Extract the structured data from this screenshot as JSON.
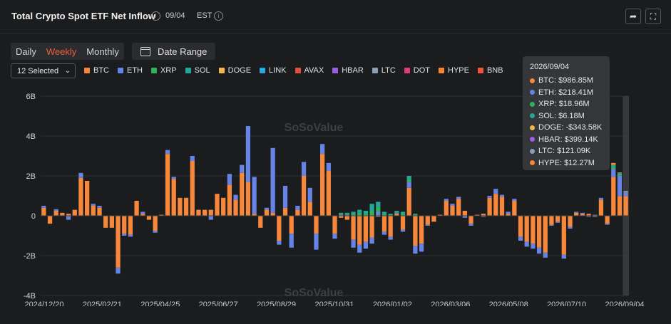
{
  "header": {
    "title": "Total Crypto Spot ETF Net Inflow",
    "date": "09/04",
    "timezone": "EST"
  },
  "controls": {
    "periods": [
      "Daily",
      "Weekly",
      "Monthly"
    ],
    "active_period": "Weekly",
    "date_range_label": "Date Range",
    "select_label": "12 Selected"
  },
  "legend": [
    {
      "name": "BTC",
      "color": "#f7873b"
    },
    {
      "name": "ETH",
      "color": "#6683e6"
    },
    {
      "name": "XRP",
      "color": "#2fb35e"
    },
    {
      "name": "SOL",
      "color": "#22a89a"
    },
    {
      "name": "DOGE",
      "color": "#f2b84d"
    },
    {
      "name": "LINK",
      "color": "#2aa7dd"
    },
    {
      "name": "AVAX",
      "color": "#e84c3d"
    },
    {
      "name": "HBAR",
      "color": "#9b5ce6"
    },
    {
      "name": "LTC",
      "color": "#8aa0b8"
    },
    {
      "name": "DOT",
      "color": "#e6397c"
    },
    {
      "name": "HYPE",
      "color": "#f98431"
    },
    {
      "name": "BNB",
      "color": "#f2543d"
    }
  ],
  "watermark": "SoSoValue",
  "tooltip": {
    "date": "2026/09/04",
    "rows": [
      {
        "label": "BTC: $986.85M",
        "color": "#f7873b"
      },
      {
        "label": "ETH: $218.41M",
        "color": "#6683e6"
      },
      {
        "label": "XRP: $18.96M",
        "color": "#2fb35e"
      },
      {
        "label": "SOL: $6.18M",
        "color": "#22a89a"
      },
      {
        "label": "DOGE: -$343.58K",
        "color": "#f2b84d"
      },
      {
        "label": "HBAR: $399.14K",
        "color": "#9b5ce6"
      },
      {
        "label": "LTC: $121.09K",
        "color": "#8aa0b8"
      },
      {
        "label": "HYPE: $12.27M",
        "color": "#f98431"
      }
    ]
  },
  "chart_data": {
    "type": "bar",
    "stacked": true,
    "unit": "USD",
    "ylim": [
      -4,
      6
    ],
    "yticks": [
      "-4B",
      "-2B",
      "0",
      "2B",
      "4B",
      "6B"
    ],
    "x_tick_labels": [
      "2024/12/20",
      "2025/02/21",
      "2025/04/25",
      "2025/06/27",
      "2025/08/29",
      "2025/10/31",
      "2026/01/02",
      "2026/03/06",
      "2026/05/08",
      "2026/07/10",
      "2026/09/04"
    ],
    "grid": true,
    "highlighted_week": "2026/09/04",
    "series_order": [
      "BTC",
      "ETH",
      "XRP",
      "SOL",
      "HYPE"
    ],
    "weeks_billion_usd": [
      [
        0.4,
        0.1,
        0,
        0,
        0
      ],
      [
        -0.4,
        0,
        0,
        0,
        0
      ],
      [
        0.25,
        0.08,
        0,
        0,
        0
      ],
      [
        0.15,
        0,
        0,
        0,
        0
      ],
      [
        0.1,
        -0.2,
        0,
        0,
        0
      ],
      [
        0.3,
        0,
        0,
        0,
        0
      ],
      [
        1.9,
        0.25,
        0,
        0,
        0
      ],
      [
        1.75,
        0,
        0,
        0,
        0
      ],
      [
        0.5,
        0.1,
        0,
        0,
        0
      ],
      [
        0.4,
        0.1,
        0,
        0,
        0
      ],
      [
        -0.6,
        0,
        0,
        0,
        0
      ],
      [
        -0.6,
        0,
        0,
        0,
        0
      ],
      [
        -2.6,
        -0.3,
        0,
        0,
        0
      ],
      [
        -0.9,
        -0.1,
        0,
        0,
        0
      ],
      [
        -0.95,
        -0.1,
        0,
        0,
        0
      ],
      [
        0.75,
        0,
        0,
        0,
        0
      ],
      [
        0.1,
        0.1,
        0,
        0,
        0
      ],
      [
        -0.2,
        0,
        0,
        0,
        0
      ],
      [
        -0.75,
        -0.1,
        0,
        0,
        0
      ],
      [
        0.05,
        0,
        0,
        0,
        0
      ],
      [
        3.1,
        0.2,
        0,
        0,
        0
      ],
      [
        1.85,
        0.1,
        0,
        0,
        0
      ],
      [
        0.9,
        0,
        0,
        0,
        0
      ],
      [
        0.9,
        0,
        0,
        0,
        0
      ],
      [
        2.75,
        0.25,
        0,
        0,
        0
      ],
      [
        0.3,
        0,
        0,
        0,
        0
      ],
      [
        0.3,
        0,
        0,
        0,
        0
      ],
      [
        0.3,
        -0.2,
        0,
        0,
        0
      ],
      [
        1.1,
        0,
        0,
        0,
        0
      ],
      [
        0.9,
        0,
        0,
        0,
        0
      ],
      [
        1.55,
        0.55,
        0,
        0,
        0
      ],
      [
        0.8,
        0.25,
        0,
        0,
        0
      ],
      [
        2.15,
        0.4,
        0,
        0,
        0
      ],
      [
        1.7,
        2.8,
        0,
        0,
        0
      ],
      [
        0.1,
        1.85,
        0,
        0,
        0
      ],
      [
        -0.6,
        0,
        0,
        0,
        0
      ],
      [
        0.3,
        0.1,
        0,
        0,
        0
      ],
      [
        0.15,
        3.25,
        0,
        0,
        0
      ],
      [
        -1.25,
        -0.2,
        0,
        0,
        0
      ],
      [
        0.4,
        1.1,
        0,
        0,
        0
      ],
      [
        -0.9,
        -0.7,
        0,
        0,
        0
      ],
      [
        0.3,
        0.2,
        0,
        0,
        0
      ],
      [
        2.0,
        0.7,
        0,
        0,
        0
      ],
      [
        0.7,
        0.7,
        0,
        0,
        0
      ],
      [
        -0.9,
        -0.8,
        0,
        0,
        0
      ],
      [
        3.1,
        0.5,
        0,
        0,
        0
      ],
      [
        2.25,
        0.4,
        0,
        0,
        0
      ],
      [
        -0.9,
        -0.25,
        0,
        0,
        0
      ],
      [
        -0.1,
        0.05,
        0.05,
        0.05,
        0
      ],
      [
        -0.2,
        0.05,
        0.05,
        0.05,
        0
      ],
      [
        -1.2,
        -0.4,
        0.1,
        0.1,
        0
      ],
      [
        -1.45,
        -0.4,
        0.15,
        0.15,
        0
      ],
      [
        -1.3,
        -0.35,
        0.1,
        0.15,
        0
      ],
      [
        -1.1,
        -0.3,
        0.25,
        0.35,
        0
      ],
      [
        -0.05,
        0.2,
        0.25,
        0.25,
        0
      ],
      [
        -0.8,
        -0.15,
        0.1,
        0.1,
        0
      ],
      [
        -1.05,
        -0.15,
        0.05,
        0.05,
        0
      ],
      [
        0.1,
        0.05,
        0.05,
        0.05,
        0
      ],
      [
        -0.7,
        -0.1,
        0.1,
        0.1,
        0
      ],
      [
        1.4,
        0.3,
        0.15,
        0.15,
        0
      ],
      [
        -1.5,
        -0.4,
        0.05,
        0.05,
        0
      ],
      [
        -1.4,
        -0.4,
        0,
        0,
        0
      ],
      [
        -0.45,
        -0.05,
        0,
        0,
        0
      ],
      [
        -0.3,
        0,
        0,
        0,
        0
      ],
      [
        0.05,
        0,
        0,
        0,
        0
      ],
      [
        0.75,
        0.1,
        0,
        0,
        0
      ],
      [
        0.5,
        0.1,
        0,
        0,
        0
      ],
      [
        0.85,
        0.1,
        0,
        0,
        0
      ],
      [
        0.25,
        -0.1,
        0,
        0,
        0
      ],
      [
        -0.4,
        -0.1,
        0,
        0,
        0
      ],
      [
        0.05,
        0,
        0,
        0,
        0
      ],
      [
        0.1,
        -0.05,
        0,
        0,
        0
      ],
      [
        0.9,
        0.1,
        0,
        0,
        0
      ],
      [
        1.1,
        0.25,
        0,
        0,
        0
      ],
      [
        0.95,
        0.1,
        0,
        0,
        0
      ],
      [
        0.1,
        0.1,
        0,
        0,
        0
      ],
      [
        0.75,
        0.1,
        0,
        0,
        0
      ],
      [
        -1.05,
        -0.2,
        0,
        0,
        0
      ],
      [
        -1.3,
        -0.25,
        0,
        0,
        0
      ],
      [
        -1.4,
        -0.25,
        0,
        0,
        0
      ],
      [
        -1.6,
        -0.3,
        0,
        0,
        0
      ],
      [
        -1.85,
        -0.25,
        0,
        0,
        0
      ],
      [
        -0.45,
        -0.05,
        0,
        0,
        0
      ],
      [
        -0.3,
        -0.05,
        0,
        0,
        0
      ],
      [
        -1.95,
        -0.2,
        0,
        0,
        0
      ],
      [
        -0.55,
        -0.1,
        0,
        0,
        0
      ],
      [
        0.15,
        0.05,
        0,
        0,
        0
      ],
      [
        0.1,
        0.05,
        0,
        0,
        0
      ],
      [
        0.1,
        -0.05,
        0,
        0,
        0
      ],
      [
        -0.05,
        0.05,
        0,
        0,
        0
      ],
      [
        0.8,
        0.1,
        0,
        0,
        0
      ],
      [
        -0.4,
        -0.05,
        0,
        0,
        0
      ],
      [
        1.95,
        0.4,
        0.1,
        0.1,
        0.1
      ],
      [
        0.99,
        1.02,
        0.1,
        0.05,
        0.01
      ],
      [
        0.99,
        0.22,
        0.02,
        0.01,
        0.01
      ]
    ]
  }
}
